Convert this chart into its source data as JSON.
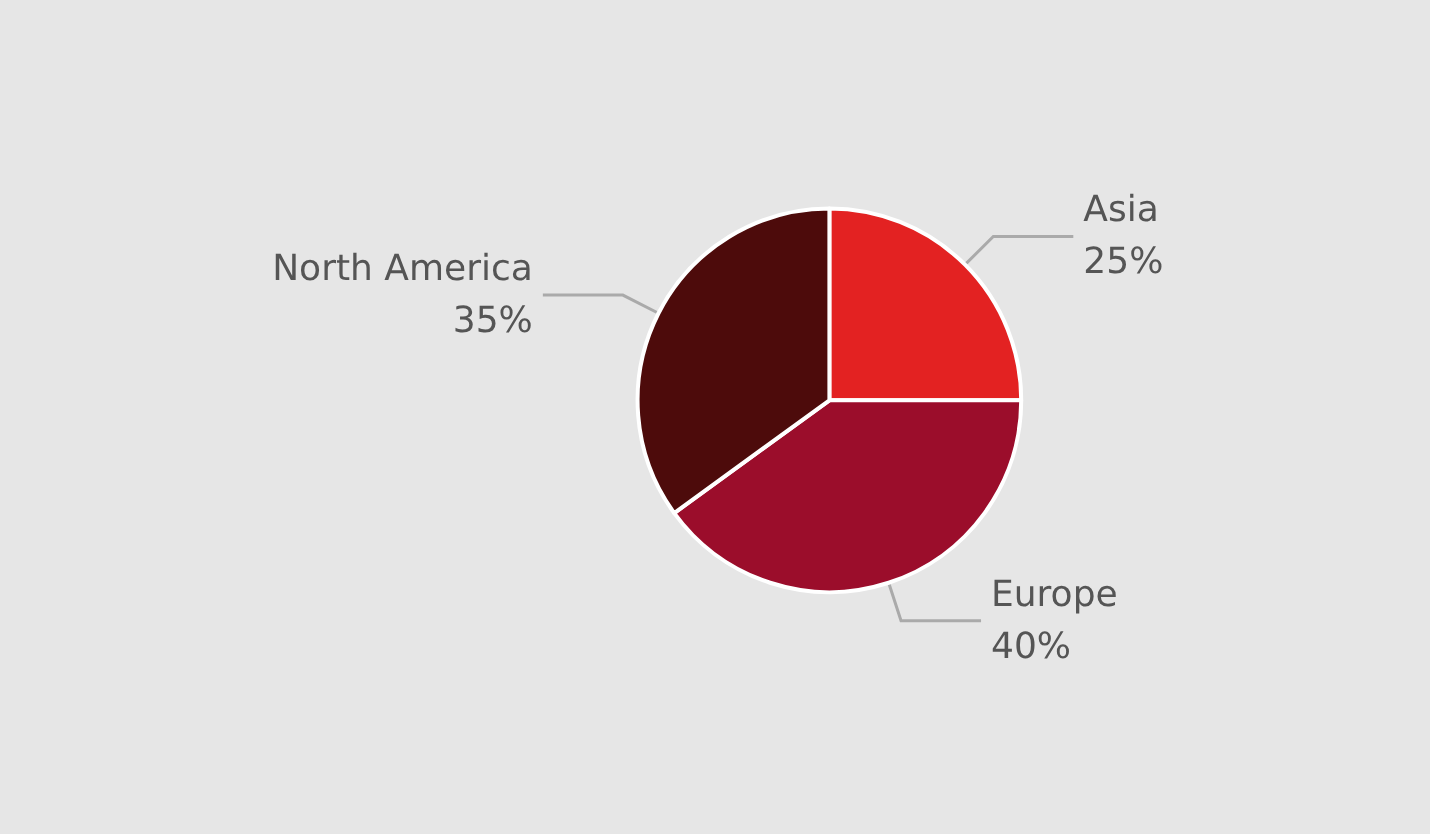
{
  "chart_data": {
    "type": "pie",
    "categories": [
      "Asia",
      "Europe",
      "North America"
    ],
    "values": [
      25,
      40,
      35
    ],
    "colors": [
      "#e32222",
      "#9b0d2b",
      "#4d0b0b"
    ],
    "value_labels": [
      "25%",
      "40%",
      "35%"
    ],
    "legend": false
  }
}
